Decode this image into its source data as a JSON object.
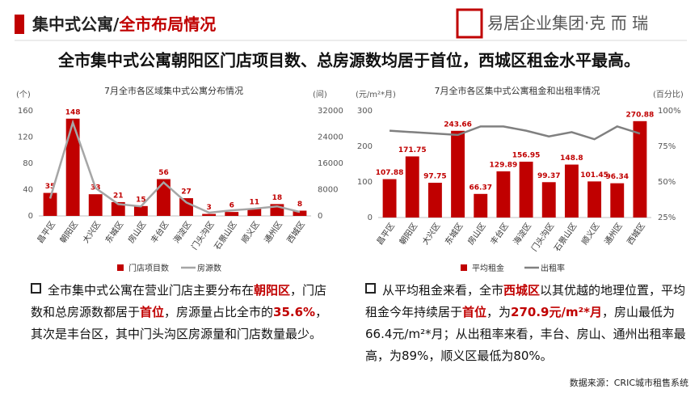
{
  "header": {
    "title_main": "集中式公寓/",
    "title_accent": "全市布局情况",
    "logo": "易居企业集团·克 而 瑞"
  },
  "headline": "全市集中式公寓朝阳区门店项目数、总房源数均居于首位，西城区租金水平最高。",
  "chart_data": [
    {
      "type": "bar",
      "title": "7月全市各区域集中式公寓分布情况",
      "y_label": "(个)",
      "y2_label": "(间)",
      "categories": [
        "昌平区",
        "朝阳区",
        "大兴区",
        "东城区",
        "房山区",
        "丰台区",
        "海淀区",
        "门头沟区",
        "石景山区",
        "顺义区",
        "通州区",
        "西城区"
      ],
      "series": [
        {
          "name": "门店项目数",
          "type": "bar",
          "color": "#c00000",
          "values": [
            35,
            148,
            33,
            21,
            15,
            56,
            27,
            3,
            6,
            11,
            18,
            8
          ]
        },
        {
          "name": "房源数",
          "type": "line",
          "axis": "y2",
          "color": "#a6a6a6",
          "values": [
            5300,
            28400,
            8500,
            3600,
            2900,
            10200,
            4100,
            1000,
            1700,
            2200,
            2900,
            1200
          ]
        }
      ],
      "ylim": [
        0,
        160
      ],
      "yticks": [
        0,
        40,
        80,
        120,
        160
      ],
      "y2lim": [
        0,
        32000
      ],
      "y2ticks": [
        0,
        8000,
        16000,
        24000,
        32000
      ],
      "grid": false,
      "legend": "bottom"
    },
    {
      "type": "bar",
      "title": "7月全市各区集中式公寓租金和出租率情况",
      "y_label": "(元/m²*月)",
      "y2_label": "(百分比)",
      "categories": [
        "昌平区",
        "朝阳区",
        "大兴区",
        "东城区",
        "房山区",
        "丰台区",
        "海淀区",
        "门头沟区",
        "石景山区",
        "顺义区",
        "通州区",
        "西城区"
      ],
      "series": [
        {
          "name": "平均租金",
          "type": "bar",
          "color": "#c00000",
          "values": [
            107.88,
            171.75,
            97.75,
            243.66,
            66.37,
            129.89,
            156.95,
            99.37,
            148.8,
            101.45,
            96.34,
            270.88
          ]
        },
        {
          "name": "出租率",
          "type": "line",
          "axis": "y2",
          "color": "#808080",
          "values": [
            86,
            85,
            84,
            83,
            89,
            89,
            86,
            82,
            85,
            80,
            89,
            84
          ]
        }
      ],
      "ylim": [
        0,
        300
      ],
      "yticks": [
        0,
        100,
        200,
        300
      ],
      "y2lim": [
        25,
        100
      ],
      "y2ticks": [
        {
          "value": 25,
          "label": "25%"
        },
        {
          "value": 50,
          "label": "50%"
        },
        {
          "value": 75,
          "label": "75%"
        },
        {
          "value": 100,
          "label": "100%"
        }
      ],
      "grid": false,
      "legend": "bottom"
    }
  ],
  "bullets": [
    {
      "runs": [
        {
          "text": "全市集中式公寓在营业门店主要分布在",
          "em": false
        },
        {
          "text": "朝阳区",
          "em": true
        },
        {
          "text": "，门店数和总房源数都居于",
          "em": false
        },
        {
          "text": "首位",
          "em": true
        },
        {
          "text": "，房源量占比全市的",
          "em": false
        },
        {
          "text": "35.6%",
          "em": true
        },
        {
          "text": "，其次是丰台区，其中门头沟区房源量和门店数量最少。",
          "em": false
        }
      ]
    },
    {
      "runs": [
        {
          "text": "从平均租金来看，全市",
          "em": false
        },
        {
          "text": "西城区",
          "em": true
        },
        {
          "text": "以其优越的地理位置，平均租金今年持续居于",
          "em": false
        },
        {
          "text": "首位",
          "em": true
        },
        {
          "text": "，为",
          "em": false
        },
        {
          "text": "270.9元/m²*月",
          "em": true
        },
        {
          "text": "，房山最低为66.4元/m²*月；从出租率来看，丰台、房山、通州出租率最高，为89%，顺义区最低为80%。",
          "em": false
        }
      ]
    }
  ],
  "source": "数据来源：CRIC城市租售系统"
}
